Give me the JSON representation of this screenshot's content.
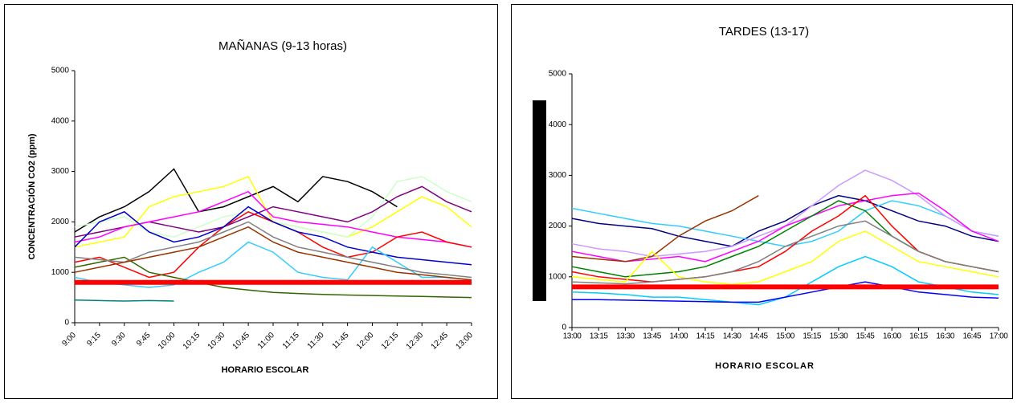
{
  "chart_data": [
    {
      "type": "line",
      "title": "MAÑANAS (9-13 horas)",
      "x_label": "HORARIO ESCOLAR",
      "y_label": "CONCENTRACIÓN CO2 (ppm)",
      "categories": [
        "9:00",
        "9:15",
        "9:30",
        "9:45",
        "10:00",
        "10:15",
        "10:30",
        "10:45",
        "11:00",
        "11:15",
        "11:30",
        "11:45",
        "12:00",
        "12:15",
        "12:30",
        "12:45",
        "13:00"
      ],
      "ylim": [
        0,
        5000
      ],
      "yticks": [
        0,
        1000,
        2000,
        3000,
        4000,
        5000
      ],
      "series": [
        {
          "color": "#000000",
          "values": [
            1800,
            2100,
            2300,
            2600,
            3050,
            2200,
            2300,
            2500,
            2700,
            2400,
            2900,
            2800,
            2600,
            2300,
            null,
            null,
            null
          ]
        },
        {
          "color": "#ffff00",
          "values": [
            1500,
            1600,
            1700,
            2300,
            2500,
            2600,
            2700,
            2900,
            2000,
            1900,
            1800,
            1700,
            1900,
            2200,
            2500,
            2300,
            1900
          ]
        },
        {
          "color": "#ccffcc",
          "values": [
            1900,
            2000,
            2100,
            1800,
            1700,
            1900,
            2100,
            2200,
            2000,
            1900,
            1800,
            1700,
            2100,
            2800,
            2900,
            2600,
            2400
          ]
        },
        {
          "color": "#800080",
          "values": [
            1700,
            1800,
            1900,
            2000,
            1900,
            1800,
            1900,
            2100,
            2300,
            2200,
            2100,
            2000,
            2200,
            2500,
            2700,
            2400,
            2200
          ]
        },
        {
          "color": "#ff00ff",
          "values": [
            1600,
            1700,
            1900,
            2000,
            2100,
            2200,
            2400,
            2600,
            2100,
            2000,
            1950,
            1900,
            1800,
            1700,
            1650,
            1600,
            1500
          ]
        },
        {
          "color": "#ff0000",
          "values": [
            1200,
            1300,
            1100,
            900,
            1000,
            1500,
            1900,
            2200,
            2000,
            1800,
            1500,
            1300,
            1400,
            1700,
            1800,
            1600,
            1500
          ]
        },
        {
          "color": "#0000cc",
          "values": [
            1500,
            2000,
            2200,
            1800,
            1600,
            1700,
            1900,
            2300,
            2000,
            1800,
            1700,
            1500,
            1400,
            1300,
            1250,
            1200,
            1150
          ]
        },
        {
          "color": "#33ccff",
          "values": [
            900,
            800,
            750,
            700,
            750,
            1000,
            1200,
            1600,
            1400,
            1000,
            900,
            850,
            1500,
            1200,
            900,
            900,
            850
          ]
        },
        {
          "color": "#336600",
          "values": [
            1100,
            1200,
            1300,
            1000,
            900,
            800,
            700,
            650,
            600,
            580,
            560,
            550,
            540,
            530,
            520,
            510,
            500
          ]
        },
        {
          "color": "#008080",
          "values": [
            450,
            440,
            430,
            440,
            430,
            null,
            null,
            null,
            null,
            null,
            null,
            null,
            null,
            null,
            null,
            null,
            null
          ]
        },
        {
          "color": "#808080",
          "values": [
            1300,
            1250,
            1200,
            1400,
            1500,
            1600,
            1800,
            2000,
            1700,
            1500,
            1400,
            1300,
            1200,
            1100,
            1000,
            950,
            900
          ]
        },
        {
          "color": "#993300",
          "values": [
            1000,
            1100,
            1200,
            1300,
            1400,
            1500,
            1700,
            1900,
            1600,
            1400,
            1300,
            1200,
            1100,
            1000,
            950,
            900,
            850
          ]
        },
        {
          "color": "#ff0000",
          "linewidth": 6,
          "values": [
            800,
            800,
            800,
            800,
            800,
            800,
            800,
            800,
            800,
            800,
            800,
            800,
            800,
            800,
            800,
            800,
            800
          ]
        }
      ]
    },
    {
      "type": "line",
      "title": "TARDES (13-17)",
      "x_label": "HORARIO ESCOLAR",
      "categories": [
        "13:00",
        "13:15",
        "13:30",
        "13:45",
        "14:00",
        "14:15",
        "14:30",
        "14:45",
        "15:00",
        "15:15",
        "15:30",
        "15:45",
        "16:00",
        "16:15",
        "16:30",
        "16:45",
        "17:00"
      ],
      "ylim": [
        0,
        5000
      ],
      "yticks": [
        0,
        1000,
        2000,
        3000,
        4000,
        5000
      ],
      "series": [
        {
          "color": "#000080",
          "values": [
            2150,
            2050,
            2000,
            1950,
            1800,
            1700,
            1600,
            1900,
            2100,
            2400,
            2600,
            2500,
            2300,
            2100,
            2000,
            1800,
            1700
          ]
        },
        {
          "color": "#33ccff",
          "values": [
            2350,
            2250,
            2150,
            2050,
            2000,
            1900,
            1800,
            1700,
            1600,
            1700,
            1900,
            2300,
            2500,
            2400,
            2200,
            1900,
            1800
          ]
        },
        {
          "color": "#cc99ff",
          "values": [
            1650,
            1550,
            1500,
            1400,
            1450,
            1500,
            1600,
            1800,
            2000,
            2400,
            2800,
            3100,
            2900,
            2600,
            2200,
            1900,
            1800
          ]
        },
        {
          "color": "#ff00ff",
          "values": [
            1500,
            1400,
            1300,
            1350,
            1400,
            1300,
            1500,
            1700,
            2000,
            2200,
            2400,
            2500,
            2600,
            2650,
            2300,
            1900,
            1700
          ]
        },
        {
          "color": "#993300",
          "values": [
            1400,
            1350,
            1300,
            1400,
            1800,
            2100,
            2300,
            2600,
            null,
            null,
            null,
            null,
            null,
            null,
            null,
            null,
            null
          ]
        },
        {
          "color": "#008000",
          "values": [
            1200,
            1100,
            1000,
            1050,
            1100,
            1200,
            1400,
            1600,
            1900,
            2200,
            2500,
            2300,
            1800,
            1500,
            1300,
            1200,
            1100
          ]
        },
        {
          "color": "#ff0000",
          "values": [
            1100,
            1000,
            950,
            900,
            950,
            1000,
            1100,
            1200,
            1500,
            1900,
            2200,
            2600,
            2000,
            1500,
            1300,
            1200,
            1100
          ]
        },
        {
          "color": "#ffff00",
          "values": [
            1000,
            950,
            900,
            1500,
            1000,
            900,
            850,
            900,
            1100,
            1300,
            1700,
            1900,
            1600,
            1300,
            1200,
            1100,
            1000
          ]
        },
        {
          "color": "#00ccff",
          "values": [
            700,
            680,
            650,
            600,
            600,
            550,
            500,
            450,
            600,
            900,
            1200,
            1400,
            1200,
            900,
            800,
            700,
            650
          ]
        },
        {
          "color": "#0000ff",
          "values": [
            550,
            550,
            540,
            530,
            520,
            510,
            500,
            500,
            600,
            700,
            800,
            900,
            800,
            700,
            650,
            600,
            580
          ]
        },
        {
          "color": "#808080",
          "values": [
            900,
            880,
            860,
            900,
            950,
            1000,
            1100,
            1300,
            1600,
            1800,
            2000,
            2100,
            1800,
            1500,
            1300,
            1200,
            1100
          ]
        },
        {
          "color": "#ff0000",
          "linewidth": 6,
          "values": [
            800,
            800,
            800,
            800,
            800,
            800,
            800,
            800,
            800,
            800,
            800,
            800,
            800,
            800,
            800,
            800,
            800
          ]
        }
      ]
    }
  ]
}
